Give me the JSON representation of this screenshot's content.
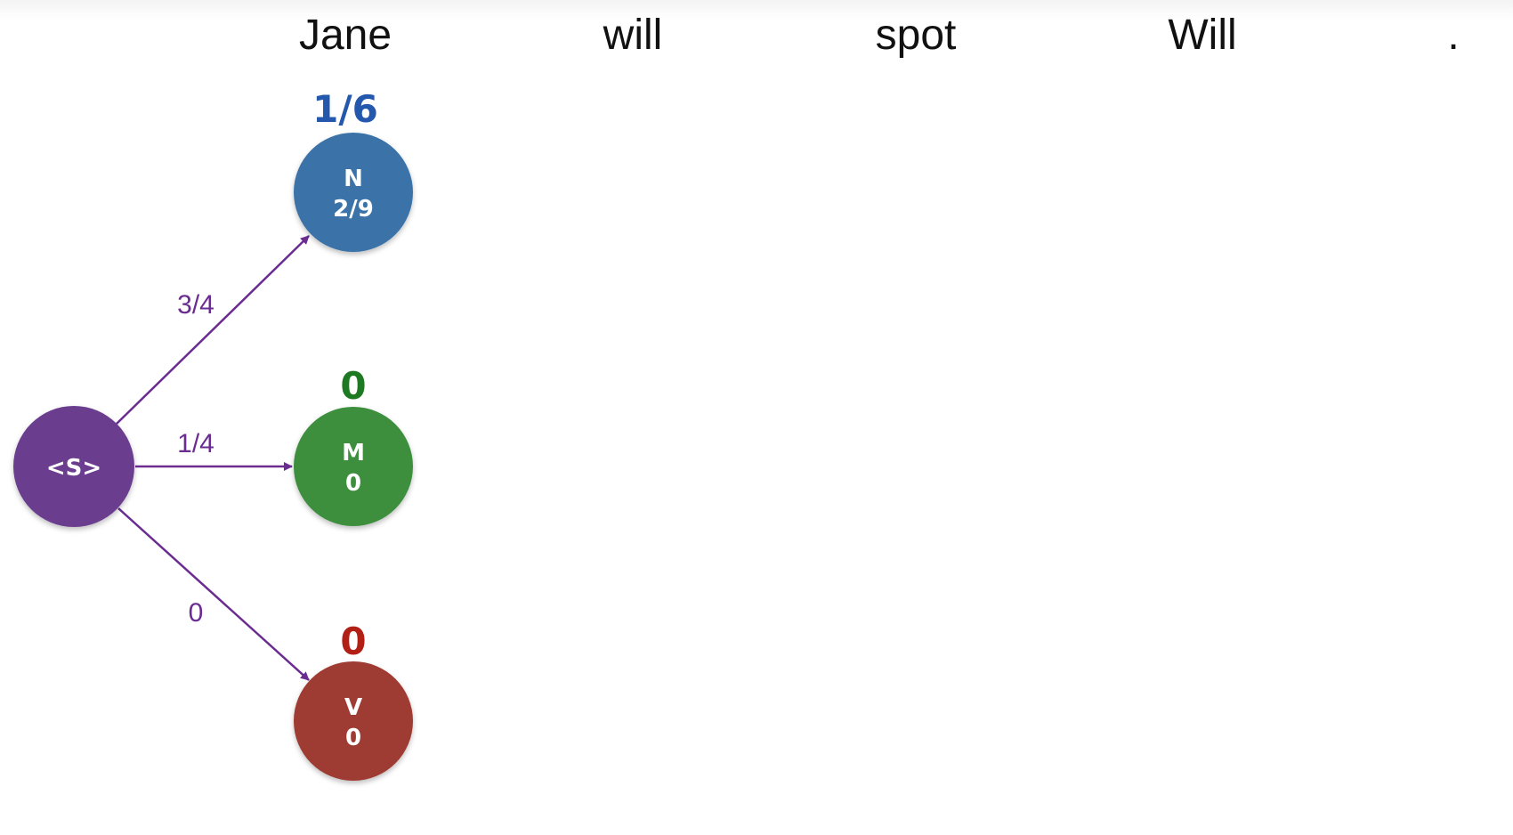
{
  "sentence": {
    "words": [
      "Jane",
      "will",
      "spot",
      "Will",
      "."
    ]
  },
  "start_node": {
    "label": "<S>",
    "color": "#6a3d8f"
  },
  "states": [
    {
      "tag": "N",
      "emission": "2/9",
      "score": "1/6",
      "transition": "3/4",
      "color": "#3a72a8",
      "score_color": "#2458ad"
    },
    {
      "tag": "M",
      "emission": "0",
      "score": "0",
      "transition": "1/4",
      "color": "#3d8f3e",
      "score_color": "#1e7a22"
    },
    {
      "tag": "V",
      "emission": "0",
      "score": "0",
      "transition": "0",
      "color": "#9e3b31",
      "score_color": "#b21f15"
    }
  ],
  "edge_color": "#6a2c91"
}
